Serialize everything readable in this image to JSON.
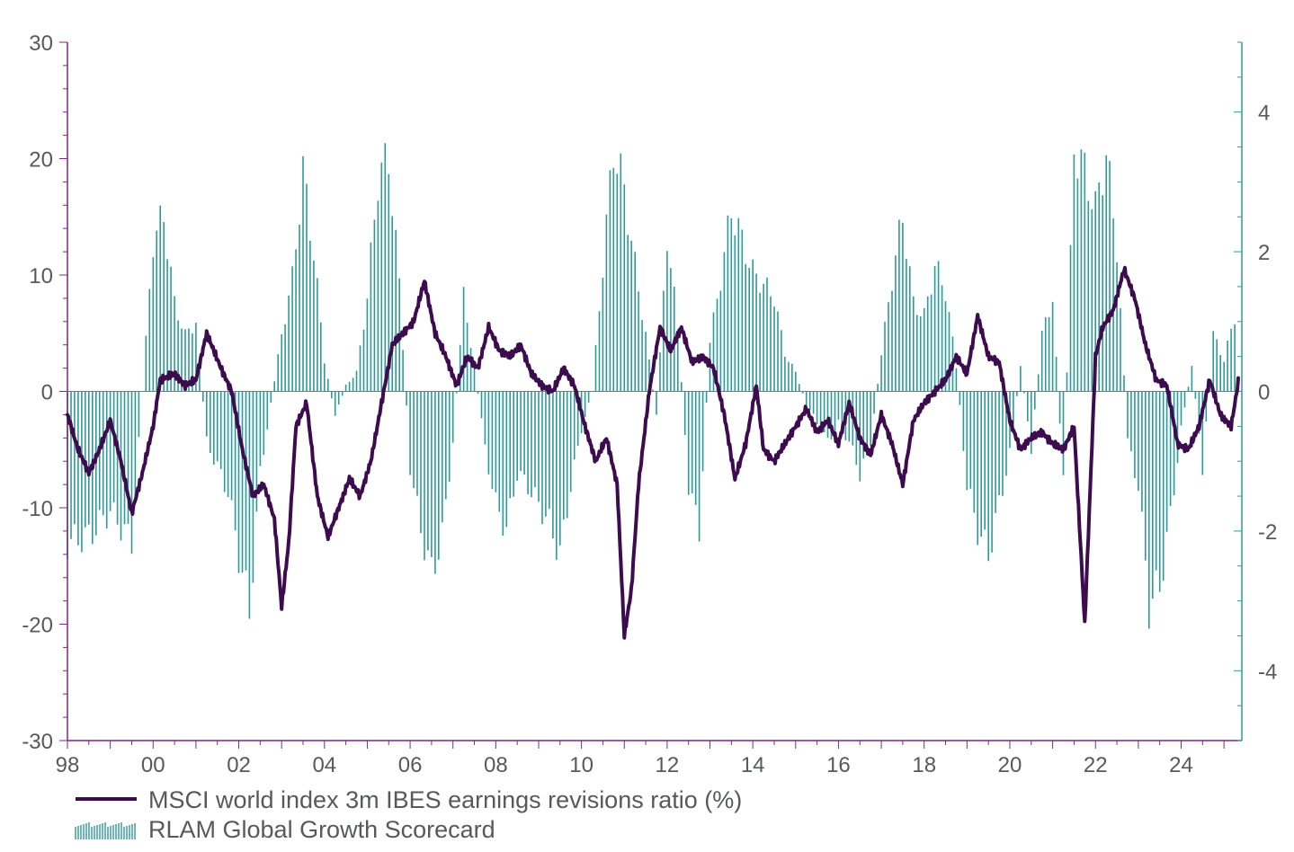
{
  "chart_data": {
    "type": "bar+line",
    "x_axis": {
      "type": "date",
      "min": "1998-01",
      "max": "2025-06",
      "tick_labels": [
        "98",
        "00",
        "02",
        "04",
        "06",
        "08",
        "10",
        "12",
        "14",
        "16",
        "18",
        "20",
        "22",
        "24"
      ],
      "tick_years": [
        1998,
        2000,
        2002,
        2004,
        2006,
        2008,
        2010,
        2012,
        2014,
        2016,
        2018,
        2020,
        2022,
        2024
      ]
    },
    "y_left": {
      "ylim": [
        -30,
        30
      ],
      "ticks": [
        -30,
        -20,
        -10,
        0,
        10,
        20,
        30
      ],
      "tick_labels": [
        "-30",
        "-20",
        "-10",
        "0",
        "10",
        "20",
        "30"
      ]
    },
    "y_right": {
      "ylim": [
        -5,
        5
      ],
      "ticks": [
        -4,
        -2,
        0,
        2,
        4
      ],
      "tick_labels": [
        "-4",
        "-2",
        "0",
        "2",
        "4"
      ]
    },
    "grid": false,
    "legend_position": "bottom-left",
    "colors": {
      "line": "#3d0c4e",
      "bars": "#2e9a98",
      "axis": "#7b2a7c",
      "text": "#58595b"
    },
    "series": [
      {
        "name": "MSCI world index 3m IBES earnings revisions ratio (%)",
        "kind": "line",
        "axis": "left",
        "points": [
          [
            "1998-01",
            -2
          ],
          [
            "1998-04",
            -5
          ],
          [
            "1998-07",
            -7
          ],
          [
            "1998-10",
            -5
          ],
          [
            "1999-01",
            -2.5
          ],
          [
            "1999-04",
            -6
          ],
          [
            "1999-07",
            -10.5
          ],
          [
            "1999-10",
            -7
          ],
          [
            "2000-01",
            -3
          ],
          [
            "2000-03",
            1
          ],
          [
            "2000-07",
            1.5
          ],
          [
            "2000-10",
            0.5
          ],
          [
            "2001-01",
            1
          ],
          [
            "2001-04",
            5
          ],
          [
            "2001-08",
            2
          ],
          [
            "2001-11",
            0
          ],
          [
            "2002-02",
            -5
          ],
          [
            "2002-05",
            -9
          ],
          [
            "2002-08",
            -8
          ],
          [
            "2002-11",
            -11
          ],
          [
            "2003-01",
            -18.5
          ],
          [
            "2003-03",
            -13
          ],
          [
            "2003-05",
            -3
          ],
          [
            "2003-08",
            -1
          ],
          [
            "2003-11",
            -9
          ],
          [
            "2004-02",
            -12.5
          ],
          [
            "2004-05",
            -10
          ],
          [
            "2004-08",
            -7.5
          ],
          [
            "2004-11",
            -9
          ],
          [
            "2005-02",
            -6
          ],
          [
            "2005-05",
            -1
          ],
          [
            "2005-08",
            4
          ],
          [
            "2005-11",
            5
          ],
          [
            "2006-02",
            6
          ],
          [
            "2006-05",
            9.5
          ],
          [
            "2006-08",
            5
          ],
          [
            "2006-11",
            3
          ],
          [
            "2007-02",
            0.5
          ],
          [
            "2007-05",
            3
          ],
          [
            "2007-08",
            2
          ],
          [
            "2007-11",
            5.5
          ],
          [
            "2008-02",
            3.5
          ],
          [
            "2008-05",
            3
          ],
          [
            "2008-08",
            4
          ],
          [
            "2008-11",
            1.5
          ],
          [
            "2009-02",
            0.5
          ],
          [
            "2009-05",
            0
          ],
          [
            "2009-08",
            2
          ],
          [
            "2009-11",
            0.5
          ],
          [
            "2010-02",
            -3
          ],
          [
            "2010-05",
            -6
          ],
          [
            "2010-08",
            -4
          ],
          [
            "2010-11",
            -8
          ],
          [
            "2011-01",
            -21
          ],
          [
            "2011-03",
            -17
          ],
          [
            "2011-05",
            -8
          ],
          [
            "2011-08",
            0
          ],
          [
            "2011-11",
            5.5
          ],
          [
            "2012-02",
            3.5
          ],
          [
            "2012-05",
            5.5
          ],
          [
            "2012-08",
            2.5
          ],
          [
            "2012-11",
            3
          ],
          [
            "2013-02",
            2
          ],
          [
            "2013-05",
            -2
          ],
          [
            "2013-08",
            -7.5
          ],
          [
            "2013-11",
            -4.5
          ],
          [
            "2014-02",
            0.5
          ],
          [
            "2014-04",
            -5
          ],
          [
            "2014-07",
            -6
          ],
          [
            "2014-10",
            -4.5
          ],
          [
            "2015-01",
            -3
          ],
          [
            "2015-04",
            -1.5
          ],
          [
            "2015-07",
            -3.5
          ],
          [
            "2015-10",
            -2.5
          ],
          [
            "2016-01",
            -4.5
          ],
          [
            "2016-04",
            -1
          ],
          [
            "2016-07",
            -4
          ],
          [
            "2016-10",
            -5.5
          ],
          [
            "2017-01",
            -2
          ],
          [
            "2017-04",
            -4.5
          ],
          [
            "2017-07",
            -8
          ],
          [
            "2017-10",
            -2.5
          ],
          [
            "2018-01",
            -1
          ],
          [
            "2018-04",
            0
          ],
          [
            "2018-07",
            1
          ],
          [
            "2018-10",
            3
          ],
          [
            "2019-01",
            1.5
          ],
          [
            "2019-04",
            6.5
          ],
          [
            "2019-07",
            3
          ],
          [
            "2019-10",
            2.5
          ],
          [
            "2020-01",
            -2.5
          ],
          [
            "2020-04",
            -5
          ],
          [
            "2020-07",
            -4
          ],
          [
            "2020-10",
            -3.5
          ],
          [
            "2021-01",
            -4.5
          ],
          [
            "2021-04",
            -5
          ],
          [
            "2021-07",
            -3
          ],
          [
            "2021-10",
            -20
          ],
          [
            "2022-01",
            3
          ],
          [
            "2022-03",
            5.5
          ],
          [
            "2022-06",
            7
          ],
          [
            "2022-09",
            10.5
          ],
          [
            "2022-12",
            8
          ],
          [
            "2023-03",
            4
          ],
          [
            "2023-06",
            1
          ],
          [
            "2023-09",
            0.5
          ],
          [
            "2023-12",
            -4.5
          ],
          [
            "2024-03",
            -5
          ],
          [
            "2024-06",
            -3
          ],
          [
            "2024-09",
            1
          ],
          [
            "2024-12",
            -2
          ],
          [
            "2025-03",
            -3
          ],
          [
            "2025-05",
            0.8
          ]
        ]
      },
      {
        "name": "RLAM Global Growth Scorecard",
        "kind": "bar",
        "axis": "right",
        "points": [
          [
            "1998-01",
            -2.4
          ],
          [
            "1998-07",
            -2.3
          ],
          [
            "1999-01",
            -1.9
          ],
          [
            "1999-07",
            -2.4
          ],
          [
            "2000-01",
            2.4
          ],
          [
            "2000-04",
            2.8
          ],
          [
            "2000-07",
            1.4
          ],
          [
            "2000-10",
            0.9
          ],
          [
            "2001-01",
            1.1
          ],
          [
            "2001-04",
            -0.8
          ],
          [
            "2001-07",
            -1.2
          ],
          [
            "2001-10",
            -1.6
          ],
          [
            "2002-01",
            -2.6
          ],
          [
            "2002-04",
            -3.5
          ],
          [
            "2002-07",
            -1.3
          ],
          [
            "2002-10",
            -0.2
          ],
          [
            "2003-01",
            0.9
          ],
          [
            "2003-04",
            1.8
          ],
          [
            "2003-07",
            3.5
          ],
          [
            "2003-10",
            2.2
          ],
          [
            "2004-01",
            0.5
          ],
          [
            "2004-04",
            -0.4
          ],
          [
            "2004-07",
            0.1
          ],
          [
            "2004-10",
            0.3
          ],
          [
            "2005-01",
            1.5
          ],
          [
            "2005-04",
            3.4
          ],
          [
            "2005-07",
            3.7
          ],
          [
            "2005-10",
            1.7
          ],
          [
            "2006-01",
            -1.2
          ],
          [
            "2006-04",
            -2.2
          ],
          [
            "2006-07",
            -2.9
          ],
          [
            "2006-10",
            -2.3
          ],
          [
            "2007-01",
            -0.8
          ],
          [
            "2007-04",
            1.5
          ],
          [
            "2007-07",
            0.4
          ],
          [
            "2007-10",
            -0.9
          ],
          [
            "2008-01",
            -1.8
          ],
          [
            "2008-04",
            -2.2
          ],
          [
            "2008-07",
            -1.3
          ],
          [
            "2008-10",
            -1.5
          ],
          [
            "2009-01",
            -1.8
          ],
          [
            "2009-04",
            -2.1
          ],
          [
            "2009-07",
            -2.6
          ],
          [
            "2009-10",
            -1.5
          ],
          [
            "2010-01",
            -0.6
          ],
          [
            "2010-04",
            0
          ],
          [
            "2010-07",
            2
          ],
          [
            "2010-10",
            3.9
          ],
          [
            "2011-01",
            3.2
          ],
          [
            "2011-04",
            2
          ],
          [
            "2011-07",
            0.9
          ],
          [
            "2011-10",
            -0.4
          ],
          [
            "2012-01",
            2.5
          ],
          [
            "2012-04",
            1
          ],
          [
            "2012-07",
            -1.5
          ],
          [
            "2012-10",
            -2.2
          ],
          [
            "2013-01",
            0.8
          ],
          [
            "2013-04",
            1.8
          ],
          [
            "2013-07",
            2.9
          ],
          [
            "2013-10",
            2.4
          ],
          [
            "2014-01",
            1.9
          ],
          [
            "2014-04",
            1.7
          ],
          [
            "2014-07",
            1.5
          ],
          [
            "2014-10",
            0.6
          ],
          [
            "2015-01",
            0.3
          ],
          [
            "2015-04",
            -0.2
          ],
          [
            "2015-07",
            -0.5
          ],
          [
            "2015-10",
            -0.8
          ],
          [
            "2016-01",
            -0.5
          ],
          [
            "2016-04",
            -0.8
          ],
          [
            "2016-07",
            -1.3
          ],
          [
            "2016-10",
            -0.8
          ],
          [
            "2017-01",
            0.6
          ],
          [
            "2017-04",
            1.8
          ],
          [
            "2017-07",
            2.8
          ],
          [
            "2017-10",
            1.4
          ],
          [
            "2018-01",
            1.2
          ],
          [
            "2018-04",
            2
          ],
          [
            "2018-07",
            1.6
          ],
          [
            "2018-10",
            0.4
          ],
          [
            "2019-01",
            -1.5
          ],
          [
            "2019-04",
            -2.2
          ],
          [
            "2019-07",
            -2.6
          ],
          [
            "2019-10",
            -1.8
          ],
          [
            "2020-01",
            -1
          ],
          [
            "2020-04",
            0.4
          ],
          [
            "2020-07",
            -0.9
          ],
          [
            "2020-10",
            0.9
          ],
          [
            "2021-01",
            1.5
          ],
          [
            "2021-04",
            -1.5
          ],
          [
            "2021-07",
            3.9
          ],
          [
            "2021-10",
            3.5
          ],
          [
            "2022-01",
            2.9
          ],
          [
            "2022-04",
            3.8
          ],
          [
            "2022-07",
            2.3
          ],
          [
            "2022-10",
            -0.8
          ],
          [
            "2023-01",
            -1.5
          ],
          [
            "2023-04",
            -3.4
          ],
          [
            "2023-07",
            -3.1
          ],
          [
            "2023-10",
            -2
          ],
          [
            "2024-01",
            -0.6
          ],
          [
            "2024-04",
            0.4
          ],
          [
            "2024-07",
            -1.2
          ],
          [
            "2024-10",
            0.9
          ],
          [
            "2025-01",
            0.5
          ],
          [
            "2025-04",
            1.2
          ]
        ]
      }
    ]
  }
}
